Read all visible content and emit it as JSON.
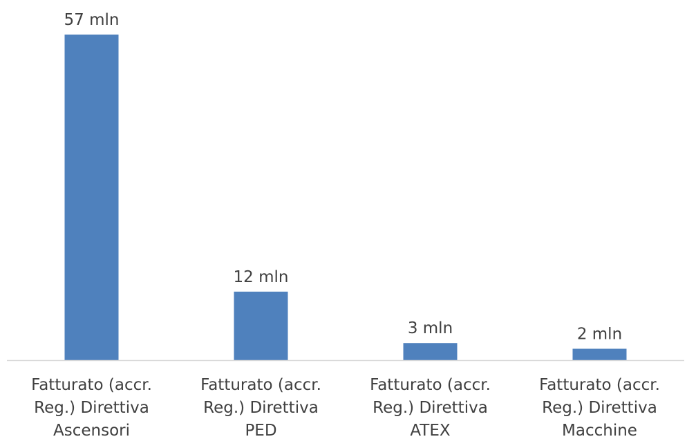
{
  "chart_data": {
    "type": "bar",
    "categories": [
      [
        "Fatturato (accr.",
        "Reg.) Direttiva",
        "Ascensori"
      ],
      [
        "Fatturato (accr.",
        "Reg.) Direttiva",
        "PED"
      ],
      [
        "Fatturato (accr.",
        "Reg.) Direttiva",
        "ATEX"
      ],
      [
        "Fatturato (accr.",
        "Reg.) Direttiva",
        "Macchine"
      ]
    ],
    "values": [
      57,
      12,
      3,
      2
    ],
    "data_labels": [
      "57 mln",
      "12 mln",
      "3 mln",
      "2 mln"
    ],
    "bar_color": "#4F81BD",
    "axis_color": "#D9D9D9",
    "text_color": "#404040",
    "ylim": [
      0,
      57
    ],
    "grid": false,
    "legend": "none"
  }
}
